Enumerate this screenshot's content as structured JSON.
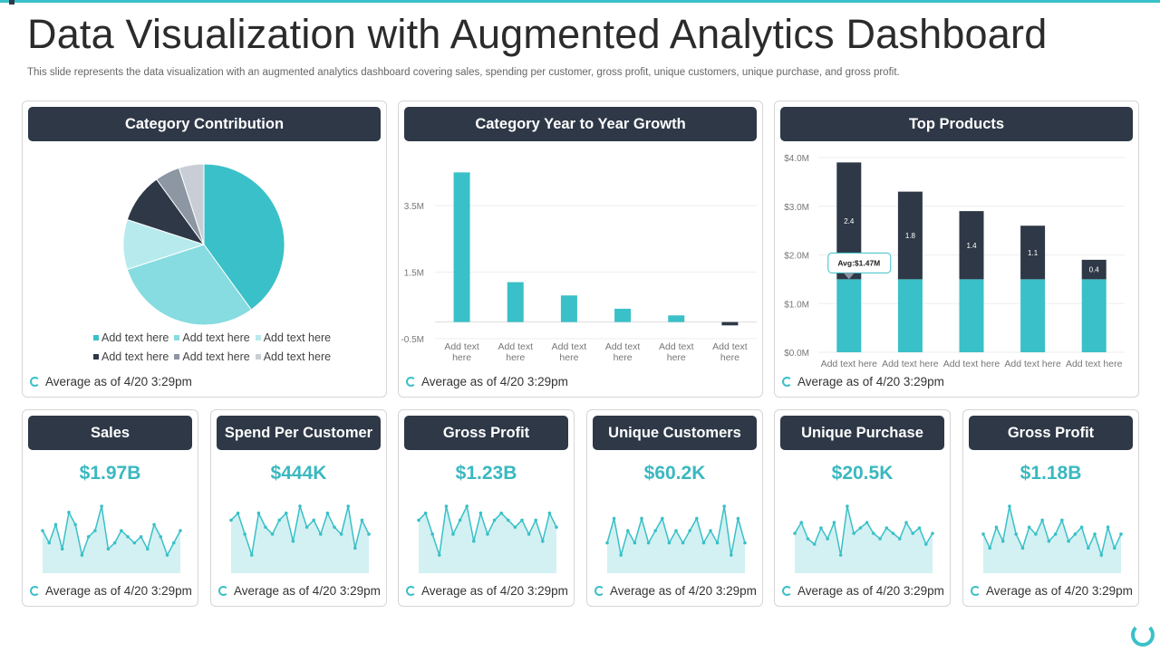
{
  "page": {
    "title": "Data Visualization with Augmented Analytics Dashboard",
    "subtitle": "This slide represents the data visualization with an augmented analytics dashboard covering sales, spending per customer, gross profit, unique customers, unique purchase, and gross profit."
  },
  "colors": {
    "teal": "#3ac0c8",
    "light_teal": "#86dce0",
    "pale_teal": "#b7eaec",
    "navy": "#2e3847",
    "gray": "#8d96a3",
    "light_gray": "#c9ced6",
    "area_fill": "#d3f1f2"
  },
  "footer_text": "Average  as of 4/20 3:29pm",
  "cards": {
    "category_contribution": {
      "title": "Category Contribution"
    },
    "yoy_growth": {
      "title": "Category Year to Year Growth"
    },
    "top_products": {
      "title": "Top Products"
    }
  },
  "pie_legend": [
    "Add text here",
    "Add text here",
    "Add text here",
    "Add text here",
    "Add text here",
    "Add text here"
  ],
  "chart_data": [
    {
      "type": "pie",
      "title": "Category Contribution",
      "values": [
        40,
        30,
        10,
        10,
        5,
        5
      ],
      "labels": [
        "Add text here",
        "Add text here",
        "Add text here",
        "Add text here",
        "Add text here",
        "Add text here"
      ],
      "colors": [
        "#3ac0c8",
        "#86dce0",
        "#b7eaec",
        "#2e3847",
        "#8d96a3",
        "#c9ced6"
      ]
    },
    {
      "type": "bar",
      "title": "Category Year to Year Growth",
      "categories": [
        "Add text here",
        "Add text here",
        "Add text here",
        "Add text here",
        "Add text here",
        "Add text here"
      ],
      "values": [
        4.5,
        1.2,
        0.8,
        0.4,
        0.2,
        -0.1
      ],
      "yticks": [
        "3.5M",
        "1.5M",
        "-0.5M"
      ],
      "ytick_values": [
        3.5,
        1.5,
        -0.5
      ],
      "ylim": [
        -0.5,
        5.0
      ]
    },
    {
      "type": "bar",
      "title": "Top Products",
      "stacked": true,
      "categories": [
        "Add text here",
        "Add text here",
        "Add text here",
        "Add text here",
        "Add text here"
      ],
      "series": [
        {
          "values": [
            1.5,
            1.5,
            1.5,
            1.5,
            1.5
          ],
          "color": "#3ac0c8"
        },
        {
          "values": [
            2.4,
            1.8,
            1.4,
            1.1,
            0.4
          ],
          "color": "#2e3847"
        }
      ],
      "data_labels": [
        "2.4",
        "1.8",
        "1.4",
        "1.1",
        "0.4"
      ],
      "yticks": [
        "$0.0M",
        "$1.0M",
        "$2.0M",
        "$3.0M",
        "$4.0M"
      ],
      "ylim": [
        0,
        4
      ],
      "annotation": "Avg:$1.47M"
    }
  ],
  "kpis": [
    {
      "title": "Sales",
      "value": "$1.97B",
      "spark": [
        6,
        4,
        7,
        3,
        9,
        7,
        2,
        5,
        6,
        10,
        3,
        4,
        6,
        5,
        4,
        5,
        3,
        7,
        5,
        2,
        4,
        6
      ]
    },
    {
      "title": "Spend Per Customer",
      "value": "$444K",
      "spark": [
        6,
        7,
        4,
        1,
        7,
        5,
        4,
        6,
        7,
        3,
        8,
        5,
        6,
        4,
        7,
        5,
        4,
        8,
        2,
        6,
        4
      ]
    },
    {
      "title": "Gross Profit",
      "value": "$1.23B",
      "spark": [
        6,
        7,
        4,
        1,
        8,
        4,
        6,
        8,
        3,
        7,
        4,
        6,
        7,
        6,
        5,
        6,
        4,
        6,
        3,
        7,
        5
      ]
    },
    {
      "title": "Unique Customers",
      "value": "$60.2K",
      "spark": [
        5,
        7,
        4,
        6,
        5,
        7,
        5,
        6,
        7,
        5,
        6,
        5,
        6,
        7,
        5,
        6,
        5,
        8,
        4,
        7,
        5
      ]
    },
    {
      "title": "Unique Purchase",
      "value": "$20.5K",
      "spark": [
        5,
        7,
        4,
        3,
        6,
        4,
        7,
        1,
        10,
        5,
        6,
        7,
        5,
        4,
        6,
        5,
        4,
        7,
        5,
        6,
        3,
        5
      ]
    },
    {
      "title": "Gross Profit",
      "value": "$1.18B",
      "spark": [
        6,
        4,
        7,
        5,
        10,
        6,
        4,
        7,
        6,
        8,
        5,
        6,
        8,
        5,
        6,
        7,
        4,
        6,
        3,
        7,
        4,
        6
      ]
    }
  ]
}
